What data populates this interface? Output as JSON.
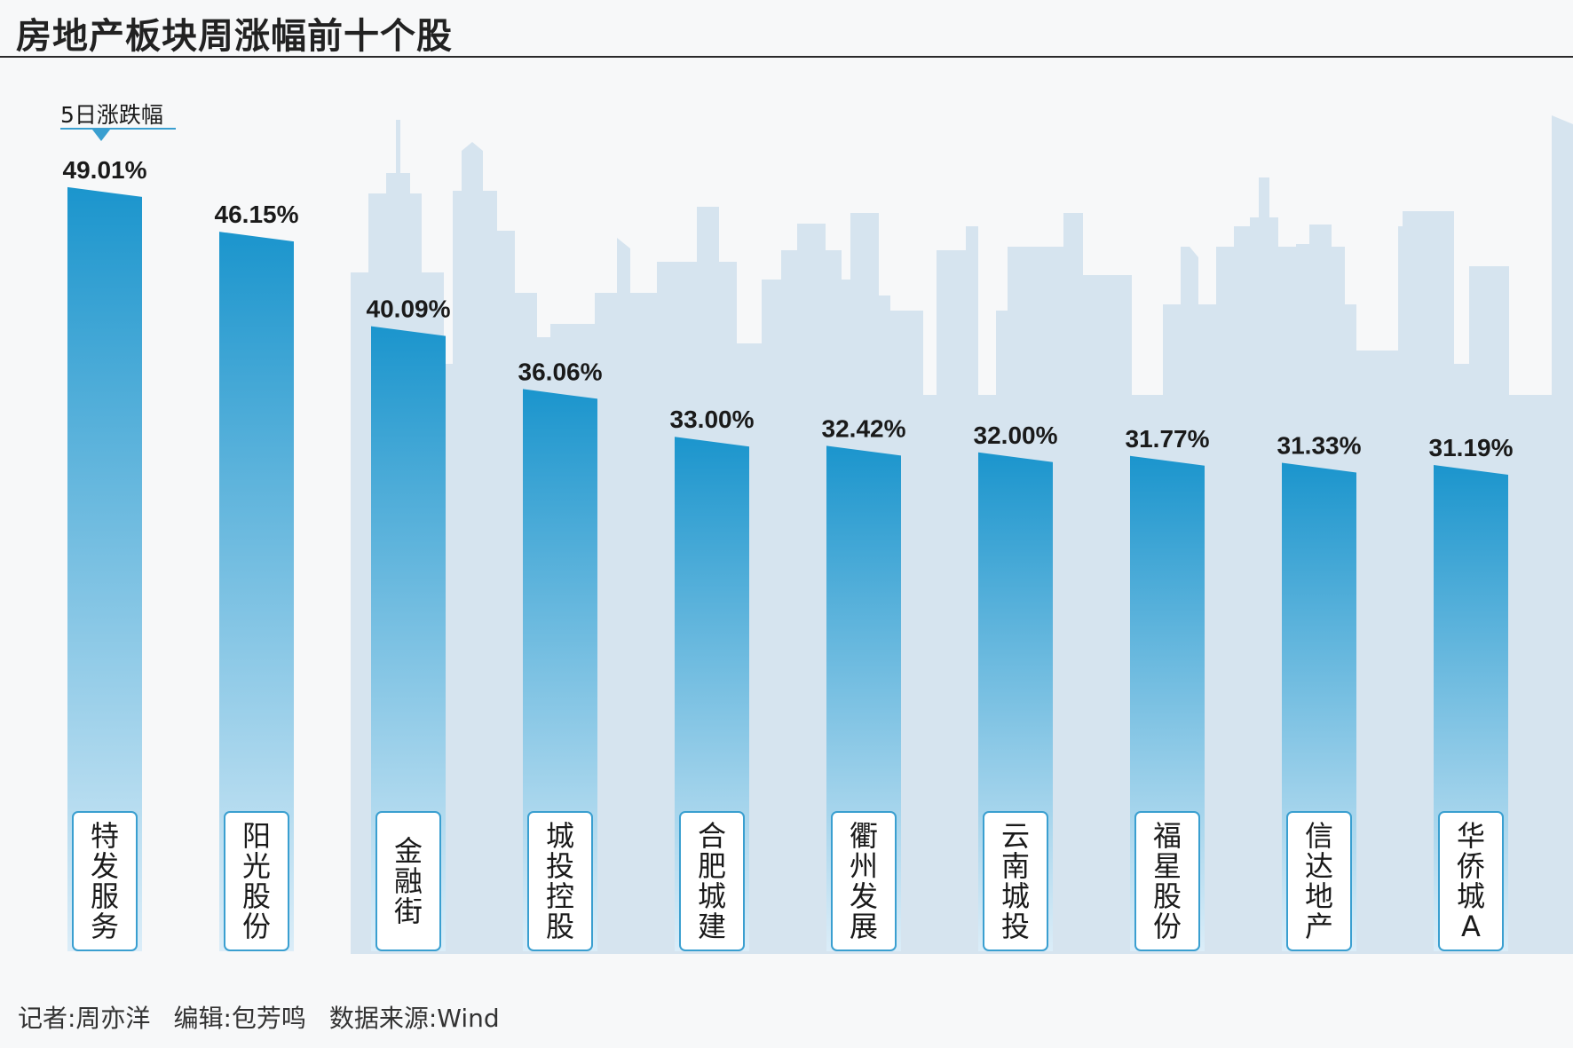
{
  "title": "房地产板块周涨幅前十个股",
  "legend_label": "5日涨跌幅",
  "footer": {
    "reporter": "记者:周亦洋",
    "editor": "编辑:包芳鸣",
    "source": "数据来源:Wind"
  },
  "colors": {
    "bar_top": "#1b95cd",
    "bar_bottom": "#d7ebf7",
    "skyline": "#d6e4ef",
    "label_border": "#3a9fd0"
  },
  "chart_data": {
    "type": "bar",
    "title": "房地产板块周涨幅前十个股",
    "ylabel": "5日涨跌幅",
    "categories": [
      "特发服务",
      "阳光股份",
      "金融街",
      "城投控股",
      "合肥城建",
      "衢州发展",
      "云南城投",
      "福星股份",
      "信达地产",
      "华侨城A"
    ],
    "values": [
      49.01,
      46.15,
      40.09,
      36.06,
      33.0,
      32.42,
      32.0,
      31.77,
      31.33,
      31.19
    ],
    "value_labels": [
      "49.01%",
      "46.15%",
      "40.09%",
      "36.06%",
      "33.00%",
      "32.42%",
      "32.00%",
      "31.77%",
      "31.33%",
      "31.19%"
    ],
    "unit": "%"
  }
}
